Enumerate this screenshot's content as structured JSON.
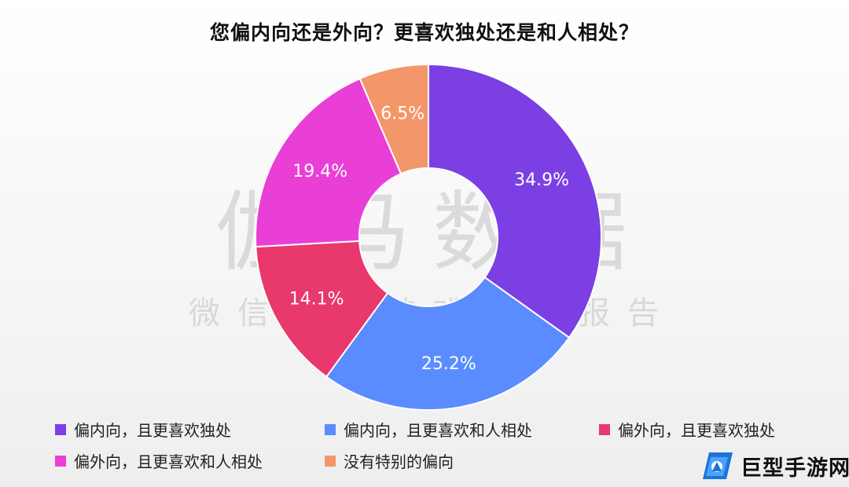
{
  "chart_data": {
    "type": "pie",
    "style": "donut",
    "title": "您偏内向还是外向？更喜欢独处还是和人相处？",
    "categories": [
      "偏内向，且更喜欢独处",
      "偏内向，且更喜欢和人相处",
      "偏外向，且更喜欢独处",
      "偏外向，且更喜欢和人相处",
      "没有特别的偏向"
    ],
    "values": [
      34.9,
      25.2,
      14.1,
      19.4,
      6.5
    ],
    "labels": [
      "34.9%",
      "25.2%",
      "14.1%",
      "19.4%",
      "6.5%"
    ],
    "colors": [
      "#7b3fe4",
      "#5b8cff",
      "#e8386c",
      "#e93fd6",
      "#f3976a"
    ],
    "unit": "%",
    "legend_position": "bottom"
  },
  "watermark": {
    "main": "伽马数据",
    "sub": "微信号：游戏产业报告"
  },
  "site_logo": {
    "text": "巨型手游网"
  }
}
